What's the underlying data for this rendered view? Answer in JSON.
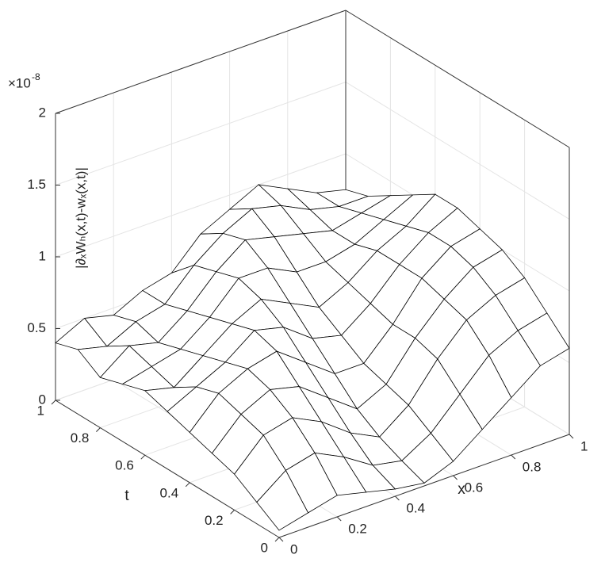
{
  "chart_data": {
    "type": "surface",
    "x": [
      0,
      0.1,
      0.2,
      0.3,
      0.4,
      0.5,
      0.6,
      0.7,
      0.8,
      0.9,
      1
    ],
    "t": [
      0,
      0.1,
      0.2,
      0.3,
      0.4,
      0.5,
      0.6,
      0.7,
      0.8,
      0.9,
      1
    ],
    "values": [
      [
        0.05,
        0.1,
        0.15,
        0.1,
        0.05,
        0.02,
        0.1,
        0.25,
        0.4,
        0.55,
        0.6
      ],
      [
        0.15,
        0.3,
        0.35,
        0.25,
        0.12,
        0.08,
        0.2,
        0.4,
        0.6,
        0.7,
        0.75
      ],
      [
        0.25,
        0.45,
        0.5,
        0.4,
        0.25,
        0.15,
        0.3,
        0.55,
        0.75,
        0.85,
        0.9
      ],
      [
        0.3,
        0.5,
        0.6,
        0.55,
        0.4,
        0.25,
        0.35,
        0.6,
        0.8,
        0.95,
        1.0
      ],
      [
        0.35,
        0.55,
        0.65,
        0.7,
        0.55,
        0.4,
        0.4,
        0.6,
        0.85,
        1.0,
        1.05
      ],
      [
        0.4,
        0.5,
        0.6,
        0.75,
        0.7,
        0.55,
        0.5,
        0.65,
        0.85,
        1.0,
        1.1
      ],
      [
        0.45,
        0.4,
        0.55,
        0.7,
        0.8,
        0.7,
        0.6,
        0.7,
        0.85,
        0.95,
        1.1
      ],
      [
        0.4,
        0.45,
        0.5,
        0.65,
        0.85,
        0.85,
        0.75,
        0.75,
        0.8,
        0.9,
        1.0
      ],
      [
        0.35,
        0.5,
        0.45,
        0.6,
        0.8,
        0.95,
        0.9,
        0.85,
        0.8,
        0.85,
        0.9
      ],
      [
        0.45,
        0.4,
        0.5,
        0.55,
        0.75,
        0.9,
        1.0,
        0.95,
        0.85,
        0.8,
        0.8
      ],
      [
        0.4,
        0.5,
        0.45,
        0.55,
        0.6,
        0.8,
        0.9,
        1.0,
        0.9,
        0.8,
        0.75
      ]
    ],
    "color": "#ffffff",
    "edge_color": "#000000",
    "grid": true,
    "xlabel": "x",
    "ylabel": "t",
    "zlabel": "|∂ₓWₕ(x,t)-wₓ(x,t)|",
    "z_multiplier": "×10",
    "z_multiplier_exponent": "-8",
    "xlim": [
      0,
      1
    ],
    "xticks": [
      0,
      0.2,
      0.4,
      0.6,
      0.8,
      1
    ],
    "ylim": [
      0,
      1
    ],
    "yticks": [
      0,
      0.2,
      0.4,
      0.6,
      0.8,
      1
    ],
    "zlim": [
      0,
      2
    ],
    "zticks": [
      0,
      0.5,
      1,
      1.5,
      2
    ]
  }
}
